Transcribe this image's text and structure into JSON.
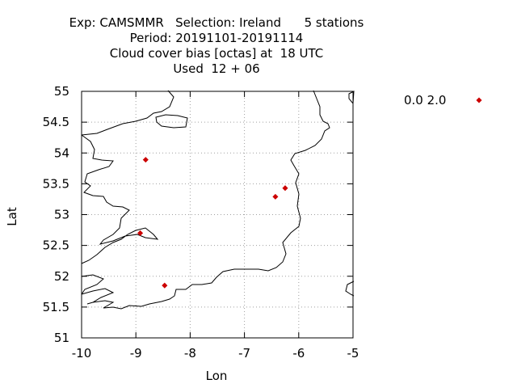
{
  "chart_data": {
    "type": "scatter",
    "title_lines": [
      "Exp: CAMSMMR   Selection: Ireland      5 stations",
      "Period: 20191101-20191114",
      "Cloud cover bias [octas] at  18 UTC",
      "Used  12 + 06"
    ],
    "xlabel": "Lon",
    "ylabel": "Lat",
    "xlim": [
      -10,
      -5
    ],
    "ylim": [
      51,
      55
    ],
    "x_ticks": [
      -10,
      -9,
      -8,
      -7,
      -6,
      -5
    ],
    "y_ticks": [
      51,
      51.5,
      52,
      52.5,
      53,
      53.5,
      54,
      54.5,
      55
    ],
    "grid": true,
    "legend": {
      "position": "top-right",
      "label": "0.0 2.0"
    },
    "marker_color": "#cc0000",
    "points": [
      {
        "lon": -8.82,
        "lat": 53.89
      },
      {
        "lon": -6.25,
        "lat": 53.43
      },
      {
        "lon": -6.43,
        "lat": 53.29
      },
      {
        "lon": -8.92,
        "lat": 52.7
      },
      {
        "lon": -8.47,
        "lat": 51.85
      }
    ]
  }
}
